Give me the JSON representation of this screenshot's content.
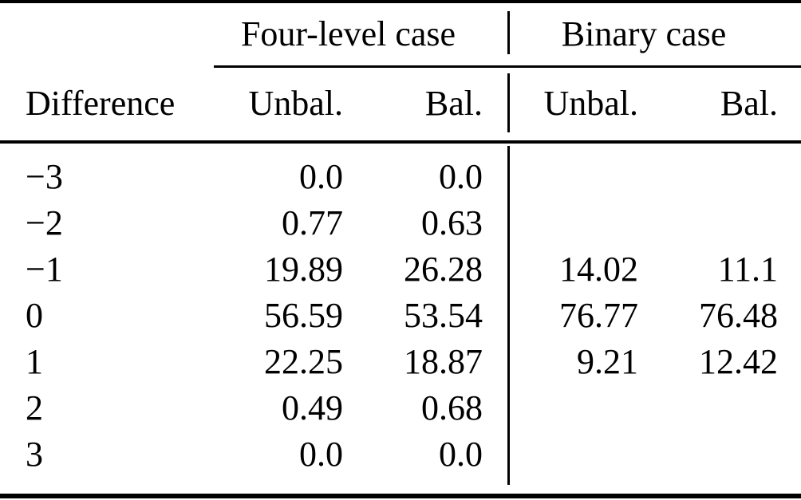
{
  "table": {
    "colors": {
      "background": "#ffffff",
      "text": "#000000",
      "rule": "#000000"
    },
    "col_groups": {
      "four_level": {
        "label": "Four-level case"
      },
      "binary": {
        "label": "Binary case"
      }
    },
    "columns": {
      "difference": "Difference",
      "four_unbal": "Unbal.",
      "four_bal": "Bal.",
      "bin_unbal": "Unbal.",
      "bin_bal": "Bal."
    },
    "rows": [
      {
        "difference": "−3",
        "four_unbal": "0.0",
        "four_bal": "0.0",
        "bin_unbal": "",
        "bin_bal": ""
      },
      {
        "difference": "−2",
        "four_unbal": "0.77",
        "four_bal": "0.63",
        "bin_unbal": "",
        "bin_bal": ""
      },
      {
        "difference": "−1",
        "four_unbal": "19.89",
        "four_bal": "26.28",
        "bin_unbal": "14.02",
        "bin_bal": "11.1"
      },
      {
        "difference": "0",
        "four_unbal": "56.59",
        "four_bal": "53.54",
        "bin_unbal": "76.77",
        "bin_bal": "76.48"
      },
      {
        "difference": "1",
        "four_unbal": "22.25",
        "four_bal": "18.87",
        "bin_unbal": "9.21",
        "bin_bal": "12.42"
      },
      {
        "difference": "2",
        "four_unbal": "0.49",
        "four_bal": "0.68",
        "bin_unbal": "",
        "bin_bal": ""
      },
      {
        "difference": "3",
        "four_unbal": "0.0",
        "four_bal": "0.0",
        "bin_unbal": "",
        "bin_bal": ""
      }
    ]
  },
  "chart_data": {
    "type": "table",
    "column_groups": [
      "Four-level case",
      "Binary case"
    ],
    "columns": [
      "Difference",
      "Four-level Unbal.",
      "Four-level Bal.",
      "Binary Unbal.",
      "Binary Bal."
    ],
    "rows": [
      [
        -3,
        0.0,
        0.0,
        null,
        null
      ],
      [
        -2,
        0.77,
        0.63,
        null,
        null
      ],
      [
        -1,
        19.89,
        26.28,
        14.02,
        11.1
      ],
      [
        0,
        56.59,
        53.54,
        76.77,
        76.48
      ],
      [
        1,
        22.25,
        18.87,
        9.21,
        12.42
      ],
      [
        2,
        0.49,
        0.68,
        null,
        null
      ],
      [
        3,
        0.0,
        0.0,
        null,
        null
      ]
    ]
  }
}
